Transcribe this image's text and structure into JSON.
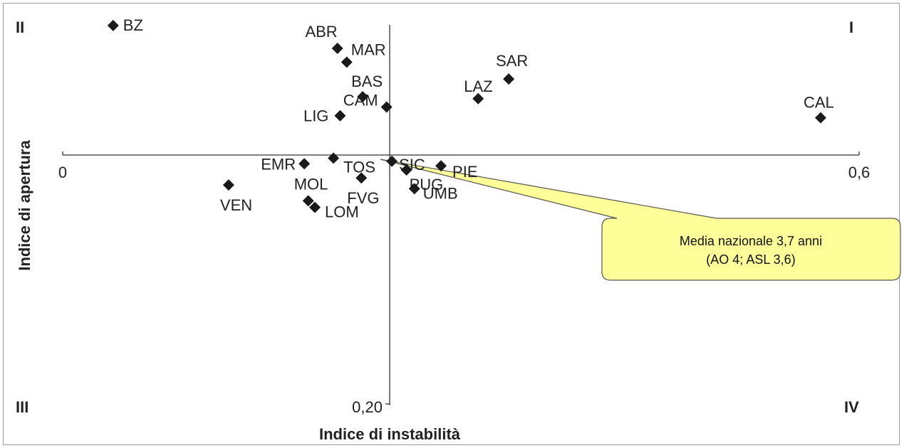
{
  "chart_data": {
    "type": "scatter",
    "xlabel": "Indice di instabilità",
    "ylabel": "Indice di apertura",
    "x_ticks": [
      "0",
      "0,6"
    ],
    "y_ticks": [
      "0,20"
    ],
    "quadrants": [
      "I",
      "II",
      "III",
      "IV"
    ],
    "callout": {
      "line1": "Media nazionale 3,7 anni",
      "line2": "(AO 4; ASL 3,6)"
    },
    "points": [
      {
        "label": "BZ",
        "x": 0.038,
        "y": 0.995
      },
      {
        "label": "ABR",
        "x": 0.207,
        "y": 0.82
      },
      {
        "label": "MAR",
        "x": 0.214,
        "y": 0.714
      },
      {
        "label": "SAR",
        "x": 0.336,
        "y": 0.584
      },
      {
        "label": "BAS",
        "x": 0.226,
        "y": 0.448
      },
      {
        "label": "LAZ",
        "x": 0.313,
        "y": 0.433
      },
      {
        "label": "CAM",
        "x": 0.244,
        "y": 0.369
      },
      {
        "label": "LIG",
        "x": 0.209,
        "y": 0.302
      },
      {
        "label": "CAL",
        "x": 0.571,
        "y": 0.286
      },
      {
        "label": "TOS",
        "x": 0.204,
        "y": -0.024
      },
      {
        "label": "EMR",
        "x": 0.182,
        "y": -0.067
      },
      {
        "label": "SIC",
        "x": 0.248,
        "y": -0.048
      },
      {
        "label": "PIE",
        "x": 0.285,
        "y": -0.083
      },
      {
        "label": "PUG",
        "x": 0.259,
        "y": -0.115
      },
      {
        "label": "FVG",
        "x": 0.225,
        "y": -0.176
      },
      {
        "label": "VEN",
        "x": 0.125,
        "y": -0.23
      },
      {
        "label": "UMB",
        "x": 0.265,
        "y": -0.259
      },
      {
        "label": "MOL",
        "x": 0.185,
        "y": -0.352
      },
      {
        "label": "LOM",
        "x": 0.19,
        "y": -0.402
      }
    ]
  }
}
